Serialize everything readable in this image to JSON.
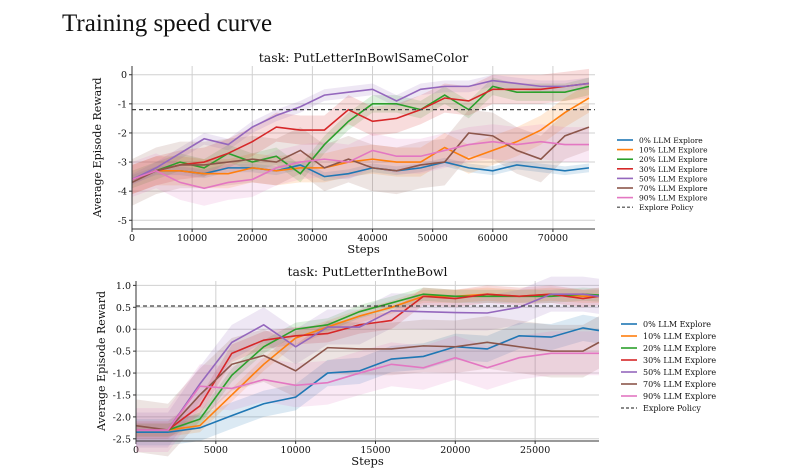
{
  "page_title": "Training speed curve",
  "colors": {
    "0% LLM Explore": "#1f77b4",
    "10% LLM Explore": "#ff7f0e",
    "20% LLM Explore": "#2ca02c",
    "30% LLM Explore": "#d62728",
    "50% LLM Explore": "#9467bd",
    "70% LLM Explore": "#8c564b",
    "90% LLM Explore": "#e377c2",
    "Explore Policy": "#444444"
  },
  "chart_data": [
    {
      "type": "line",
      "title": "task: PutLetterInBowlSameColor",
      "xlabel": "Steps",
      "ylabel": "Average Episode Reward",
      "xlim": [
        0,
        77000
      ],
      "ylim": [
        -5.3,
        0.3
      ],
      "xticks": [
        0,
        10000,
        20000,
        30000,
        40000,
        50000,
        60000,
        70000
      ],
      "yticks": [
        0,
        -1,
        -2,
        -3,
        -4,
        -5
      ],
      "grid": true,
      "legend": "right",
      "x": [
        0,
        4000,
        8000,
        12000,
        16000,
        20000,
        24000,
        28000,
        32000,
        36000,
        40000,
        44000,
        48000,
        52000,
        56000,
        60000,
        64000,
        68000,
        72000,
        76000
      ],
      "series": [
        {
          "name": "0% LLM Explore",
          "spread": 0.15,
          "values": [
            -3.6,
            -3.3,
            -3.3,
            -3.4,
            -3.2,
            -3.2,
            -3.3,
            -3.1,
            -3.5,
            -3.4,
            -3.2,
            -3.3,
            -3.2,
            -3.0,
            -3.2,
            -3.3,
            -3.1,
            -3.2,
            -3.3,
            -3.2
          ]
        },
        {
          "name": "10% LLM Explore",
          "spread": 0.5,
          "values": [
            -3.6,
            -3.3,
            -3.3,
            -3.4,
            -3.4,
            -3.2,
            -3.3,
            -3.2,
            -3.2,
            -3.0,
            -2.9,
            -3.0,
            -3.0,
            -2.5,
            -2.9,
            -2.6,
            -2.3,
            -1.9,
            -1.3,
            -0.8
          ]
        },
        {
          "name": "20% LLM Explore",
          "spread": 0.3,
          "values": [
            -3.6,
            -3.3,
            -3.0,
            -3.2,
            -2.7,
            -3.0,
            -2.8,
            -3.4,
            -2.4,
            -1.6,
            -1.0,
            -1.0,
            -1.2,
            -0.7,
            -1.2,
            -0.4,
            -0.6,
            -0.6,
            -0.6,
            -0.4
          ]
        },
        {
          "name": "30% LLM Explore",
          "spread": 0.5,
          "values": [
            -3.6,
            -3.3,
            -3.1,
            -3.0,
            -2.7,
            -2.3,
            -1.8,
            -1.9,
            -1.9,
            -1.2,
            -1.6,
            -1.5,
            -1.2,
            -0.8,
            -0.9,
            -0.5,
            -0.5,
            -0.5,
            -0.4,
            -0.3
          ]
        },
        {
          "name": "50% LLM Explore",
          "spread": 0.2,
          "values": [
            -3.6,
            -3.2,
            -2.7,
            -2.2,
            -2.4,
            -1.8,
            -1.4,
            -1.1,
            -0.7,
            -0.6,
            -0.5,
            -0.9,
            -0.5,
            -0.4,
            -0.4,
            -0.2,
            -0.3,
            -0.4,
            -0.4,
            -0.3
          ]
        },
        {
          "name": "70% LLM Explore",
          "spread": 0.8,
          "values": [
            -3.7,
            -3.3,
            -3.1,
            -3.1,
            -3.0,
            -2.9,
            -3.0,
            -2.6,
            -3.2,
            -2.9,
            -3.2,
            -3.3,
            -3.1,
            -3.0,
            -2.0,
            -2.1,
            -2.6,
            -2.9,
            -2.1,
            -1.8
          ]
        },
        {
          "name": "90% LLM Explore",
          "spread": 0.6,
          "values": [
            -3.6,
            -3.3,
            -3.7,
            -3.9,
            -3.7,
            -3.6,
            -3.2,
            -3.0,
            -2.9,
            -3.0,
            -2.6,
            -2.8,
            -2.8,
            -2.6,
            -2.4,
            -2.3,
            -2.4,
            -2.3,
            -2.4,
            -2.4
          ]
        }
      ],
      "reference_line": {
        "name": "Explore Policy",
        "value": -1.2
      }
    },
    {
      "type": "line",
      "title": "task: PutLetterIntheBowl",
      "xlabel": "Steps",
      "ylabel": "Average Episode Reward",
      "xlim": [
        0,
        29000
      ],
      "ylim": [
        -2.55,
        1.1
      ],
      "xticks": [
        0,
        5000,
        10000,
        15000,
        20000,
        25000
      ],
      "yticks": [
        1.0,
        0.5,
        0.0,
        -0.5,
        -1.0,
        -1.5,
        -2.0,
        -2.5
      ],
      "grid": true,
      "legend": "right",
      "x": [
        0,
        2000,
        4000,
        6000,
        8000,
        10000,
        12000,
        14000,
        16000,
        18000,
        20000,
        22000,
        24000,
        26000,
        28000,
        29000
      ],
      "series": [
        {
          "name": "0% LLM Explore",
          "spread": 0.3,
          "values": [
            -2.35,
            -2.35,
            -2.25,
            -1.97,
            -1.7,
            -1.55,
            -1.0,
            -0.95,
            -0.68,
            -0.62,
            -0.4,
            -0.45,
            -0.15,
            -0.18,
            0.03,
            -0.03
          ]
        },
        {
          "name": "10% LLM Explore",
          "spread": 0.15,
          "values": [
            -2.3,
            -2.3,
            -2.2,
            -1.5,
            -0.8,
            -0.2,
            0.05,
            0.3,
            0.5,
            0.75,
            0.75,
            0.8,
            0.75,
            0.8,
            0.75,
            0.75
          ]
        },
        {
          "name": "20% LLM Explore",
          "spread": 0.15,
          "values": [
            -2.3,
            -2.3,
            -2.05,
            -1.05,
            -0.4,
            0.0,
            0.1,
            0.4,
            0.6,
            0.8,
            0.75,
            0.75,
            0.75,
            0.75,
            0.8,
            0.78
          ]
        },
        {
          "name": "30% LLM Explore",
          "spread": 0.2,
          "values": [
            -2.3,
            -2.3,
            -1.75,
            -0.55,
            -0.25,
            -0.15,
            -0.1,
            0.1,
            0.2,
            0.75,
            0.7,
            0.8,
            0.75,
            0.8,
            0.7,
            0.75
          ]
        },
        {
          "name": "50% LLM Explore",
          "spread": 0.4,
          "values": [
            -2.3,
            -2.3,
            -1.25,
            -0.3,
            0.1,
            -0.4,
            0.05,
            0.05,
            0.42,
            0.4,
            0.38,
            0.37,
            0.5,
            0.8,
            0.8,
            0.75
          ]
        },
        {
          "name": "70% LLM Explore",
          "spread": 0.6,
          "values": [
            -2.2,
            -2.3,
            -1.5,
            -0.8,
            -0.6,
            -0.95,
            -0.42,
            -0.45,
            -0.45,
            -0.38,
            -0.4,
            -0.3,
            -0.4,
            -0.5,
            -0.5,
            -0.3
          ]
        },
        {
          "name": "90% LLM Explore",
          "spread": 0.5,
          "values": [
            -2.3,
            -2.3,
            -1.3,
            -1.35,
            -1.15,
            -1.28,
            -1.22,
            -1.0,
            -0.8,
            -0.88,
            -0.65,
            -0.88,
            -0.65,
            -0.55,
            -0.55,
            -0.55
          ]
        }
      ],
      "reference_line": {
        "name": "Explore Policy",
        "value": 0.53
      }
    }
  ]
}
